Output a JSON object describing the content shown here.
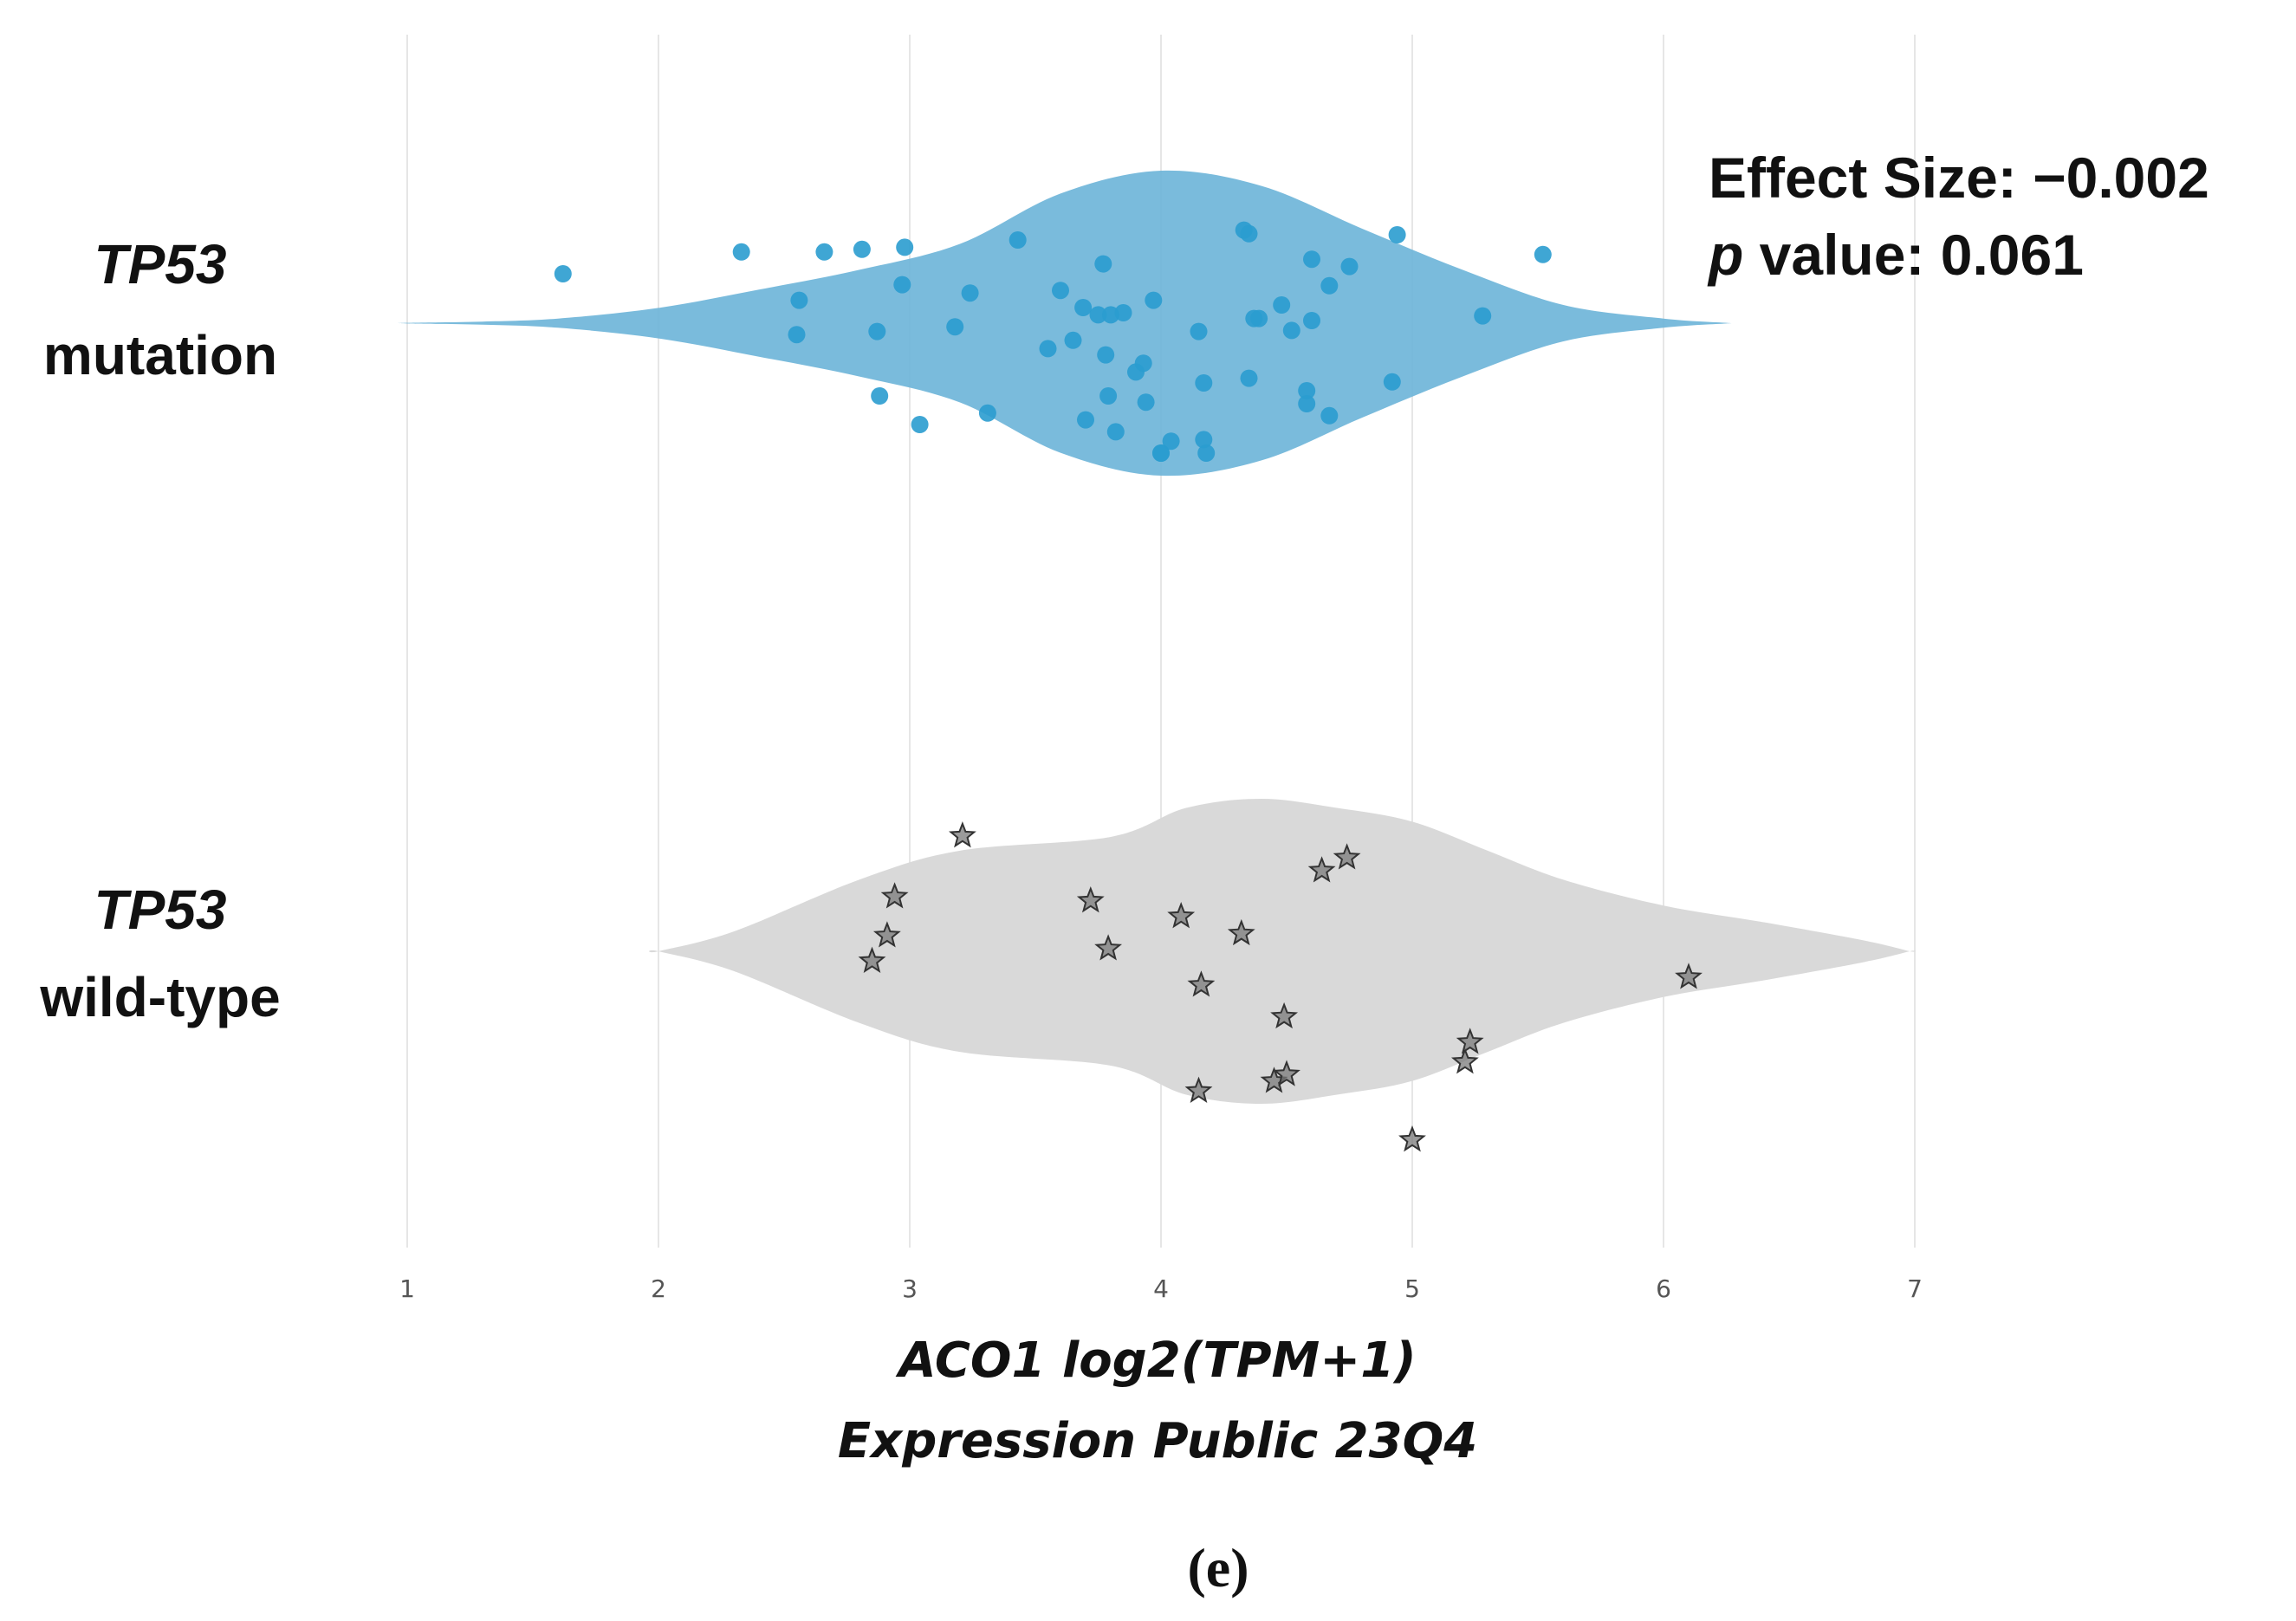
{
  "chart_data": {
    "type": "violin",
    "xlabel_line1": "ACO1 log2(TPM+1)",
    "xlabel_line2": "Expression Public 23Q4",
    "xlim": [
      1,
      7
    ],
    "xticks": [
      "1",
      "2",
      "3",
      "4",
      "5",
      "6",
      "7"
    ],
    "grid": true,
    "panel_label": "(e)",
    "stats": {
      "effect_size_text": "Effect Size: −0.002",
      "p_italic": "p",
      "p_value_text": " value: 0.061"
    },
    "colors": {
      "mutation_fill": "#6bb4d8",
      "mutation_point": "#2a9ccf",
      "wildtype_fill": "#d9d9d9",
      "wildtype_star": "#7a7a7a",
      "grid": "#e6e6e6"
    },
    "groups": [
      {
        "name": "mutation",
        "label_gene": "TP53",
        "label_status": "mutation",
        "marker": "circle",
        "violin_density": [
          [
            1.0,
            0.002
          ],
          [
            1.3,
            0.01
          ],
          [
            1.6,
            0.03
          ],
          [
            2.0,
            0.1
          ],
          [
            2.4,
            0.22
          ],
          [
            2.8,
            0.35
          ],
          [
            3.2,
            0.52
          ],
          [
            3.6,
            0.85
          ],
          [
            4.0,
            1.0
          ],
          [
            4.4,
            0.9
          ],
          [
            4.8,
            0.62
          ],
          [
            5.2,
            0.35
          ],
          [
            5.6,
            0.12
          ],
          [
            6.0,
            0.03
          ],
          [
            6.25,
            0.002
          ]
        ],
        "points": [
          [
            1.62,
            0.95
          ],
          [
            2.33,
            1.37
          ],
          [
            2.66,
            1.37
          ],
          [
            2.81,
            1.42
          ],
          [
            2.98,
            1.46
          ],
          [
            2.97,
            0.74
          ],
          [
            2.56,
            0.44
          ],
          [
            2.55,
            -0.22
          ],
          [
            2.87,
            -0.16
          ],
          [
            2.88,
            -1.4
          ],
          [
            3.04,
            -1.95
          ],
          [
            3.18,
            -0.07
          ],
          [
            3.24,
            0.58
          ],
          [
            3.31,
            -1.73
          ],
          [
            3.43,
            1.6
          ],
          [
            3.55,
            -0.49
          ],
          [
            3.6,
            0.63
          ],
          [
            3.65,
            -0.33
          ],
          [
            3.69,
            0.3
          ],
          [
            3.7,
            -1.86
          ],
          [
            3.75,
            0.16
          ],
          [
            3.77,
            1.14
          ],
          [
            3.78,
            -0.61
          ],
          [
            3.79,
            -1.4
          ],
          [
            3.8,
            0.16
          ],
          [
            3.82,
            -2.09
          ],
          [
            3.85,
            0.2
          ],
          [
            3.9,
            -0.94
          ],
          [
            3.93,
            -0.77
          ],
          [
            3.94,
            -1.52
          ],
          [
            3.97,
            0.44
          ],
          [
            4.0,
            -2.5
          ],
          [
            4.04,
            -2.27
          ],
          [
            4.15,
            -0.16
          ],
          [
            4.17,
            -1.15
          ],
          [
            4.17,
            -2.24
          ],
          [
            4.18,
            -2.5
          ],
          [
            4.33,
            1.79
          ],
          [
            4.35,
            1.72
          ],
          [
            4.35,
            -1.06
          ],
          [
            4.37,
            0.09
          ],
          [
            4.39,
            0.09
          ],
          [
            4.48,
            0.35
          ],
          [
            4.52,
            -0.14
          ],
          [
            4.58,
            -1.3
          ],
          [
            4.58,
            -1.55
          ],
          [
            4.6,
            0.05
          ],
          [
            4.6,
            1.23
          ],
          [
            4.67,
            0.72
          ],
          [
            4.67,
            -1.78
          ],
          [
            4.75,
            1.09
          ],
          [
            4.94,
            1.7
          ],
          [
            4.92,
            -1.13
          ],
          [
            5.28,
            0.14
          ],
          [
            5.52,
            1.32
          ],
          [
            4.0,
            -2.5
          ]
        ]
      },
      {
        "name": "wild-type",
        "label_gene": "TP53",
        "label_status": "wild-type",
        "marker": "star",
        "violin_density": [
          [
            2.0,
            0.0
          ],
          [
            2.3,
            0.13
          ],
          [
            2.8,
            0.47
          ],
          [
            3.2,
            0.66
          ],
          [
            3.8,
            0.75
          ],
          [
            4.1,
            0.94
          ],
          [
            4.4,
            1.0
          ],
          [
            4.7,
            0.94
          ],
          [
            5.0,
            0.85
          ],
          [
            5.3,
            0.66
          ],
          [
            5.6,
            0.47
          ],
          [
            6.0,
            0.3
          ],
          [
            6.4,
            0.19
          ],
          [
            6.8,
            0.07
          ],
          [
            6.98,
            0.0
          ]
        ],
        "points": [
          [
            3.21,
            2.22
          ],
          [
            2.94,
            1.05
          ],
          [
            2.91,
            0.3
          ],
          [
            2.85,
            -0.19
          ],
          [
            3.72,
            0.97
          ],
          [
            3.79,
            0.05
          ],
          [
            4.08,
            0.67
          ],
          [
            4.16,
            -0.65
          ],
          [
            4.32,
            0.34
          ],
          [
            4.64,
            1.55
          ],
          [
            4.74,
            1.8
          ],
          [
            4.49,
            -1.26
          ],
          [
            4.45,
            -2.5
          ],
          [
            4.5,
            -2.37
          ],
          [
            4.15,
            -2.69
          ],
          [
            5.0,
            -3.63
          ],
          [
            5.21,
            -2.13
          ],
          [
            5.23,
            -1.75
          ],
          [
            6.1,
            -0.5
          ]
        ]
      }
    ]
  }
}
